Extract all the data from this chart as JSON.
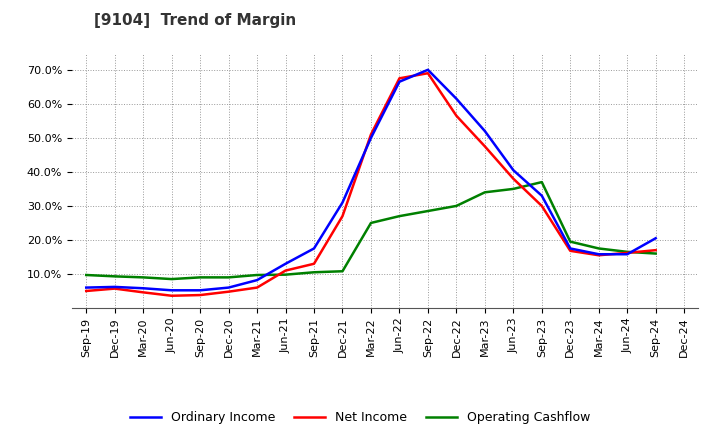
{
  "title": "[9104]  Trend of Margin",
  "ylim": [
    0.0,
    0.75
  ],
  "yticks": [
    0.1,
    0.2,
    0.3,
    0.4,
    0.5,
    0.6,
    0.7
  ],
  "ytick_labels": [
    "10.0%",
    "20.0%",
    "30.0%",
    "40.0%",
    "50.0%",
    "60.0%",
    "70.0%"
  ],
  "x_labels": [
    "Sep-19",
    "Dec-19",
    "Mar-20",
    "Jun-20",
    "Sep-20",
    "Dec-20",
    "Mar-21",
    "Jun-21",
    "Sep-21",
    "Dec-21",
    "Mar-22",
    "Jun-22",
    "Sep-22",
    "Dec-22",
    "Mar-23",
    "Jun-23",
    "Sep-23",
    "Dec-23",
    "Mar-24",
    "Jun-24",
    "Sep-24",
    "Dec-24"
  ],
  "ordinary_income": [
    0.06,
    0.062,
    0.058,
    0.052,
    0.052,
    0.06,
    0.082,
    0.13,
    0.175,
    0.31,
    0.5,
    0.665,
    0.7,
    0.615,
    0.52,
    0.405,
    0.33,
    0.175,
    0.158,
    0.158,
    0.205,
    null
  ],
  "net_income": [
    0.05,
    0.057,
    0.046,
    0.036,
    0.038,
    0.048,
    0.06,
    0.11,
    0.13,
    0.27,
    0.51,
    0.675,
    0.69,
    0.565,
    0.475,
    0.38,
    0.3,
    0.168,
    0.155,
    0.162,
    0.17,
    null
  ],
  "operating_cf": [
    0.097,
    0.093,
    0.09,
    0.085,
    0.09,
    0.09,
    0.097,
    0.098,
    0.105,
    0.108,
    0.25,
    0.27,
    0.285,
    0.3,
    0.34,
    0.35,
    0.37,
    0.195,
    0.175,
    0.165,
    0.16,
    null
  ],
  "color_ordinary": "#0000ff",
  "color_net": "#ff0000",
  "color_cf": "#008000",
  "line_width": 1.8,
  "legend_labels": [
    "Ordinary Income",
    "Net Income",
    "Operating Cashflow"
  ],
  "background_color": "#ffffff",
  "grid_color": "#999999",
  "title_fontsize": 11,
  "tick_fontsize": 8,
  "legend_fontsize": 9
}
